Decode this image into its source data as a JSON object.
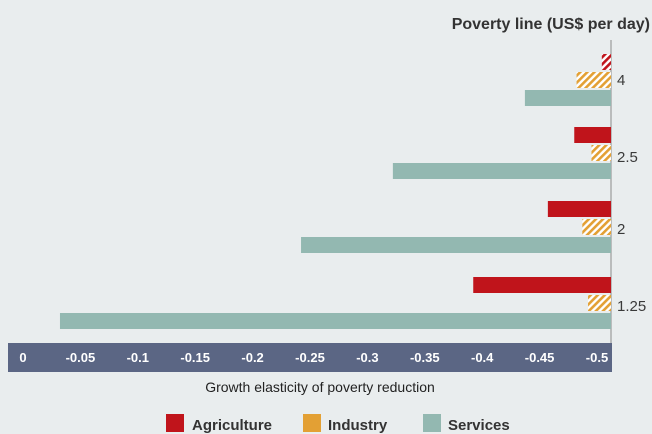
{
  "chart_data": {
    "type": "bar",
    "orientation": "horizontal",
    "title": "Poverty line (US$ per day)",
    "xlabel": "Growth elasticity of poverty reduction",
    "categories": [
      "4",
      "2.5",
      "2",
      "1.25"
    ],
    "series": [
      {
        "name": "Agriculture",
        "values": [
          -0.008,
          -0.032,
          -0.055,
          -0.12
        ],
        "color": "#c0141b",
        "hatched_values": [
          -0.008
        ]
      },
      {
        "name": "Industry",
        "values": [
          -0.03,
          -0.017,
          -0.025,
          -0.02
        ],
        "color": "#e3a034",
        "hatched": true
      },
      {
        "name": "Services",
        "values": [
          -0.075,
          -0.19,
          -0.27,
          -0.48
        ],
        "color": "#93b8b1"
      }
    ],
    "xticks": [
      "0",
      "-0.05",
      "-0.1",
      "-0.15",
      "-0.2",
      "-0.25",
      "-0.3",
      "-0.35",
      "-0.4",
      "-0.45",
      "-0.5"
    ],
    "xlim": [
      -0.5,
      0.015
    ],
    "x_reversed": true,
    "axis_color": "#5b6684",
    "legend_position": "bottom"
  }
}
